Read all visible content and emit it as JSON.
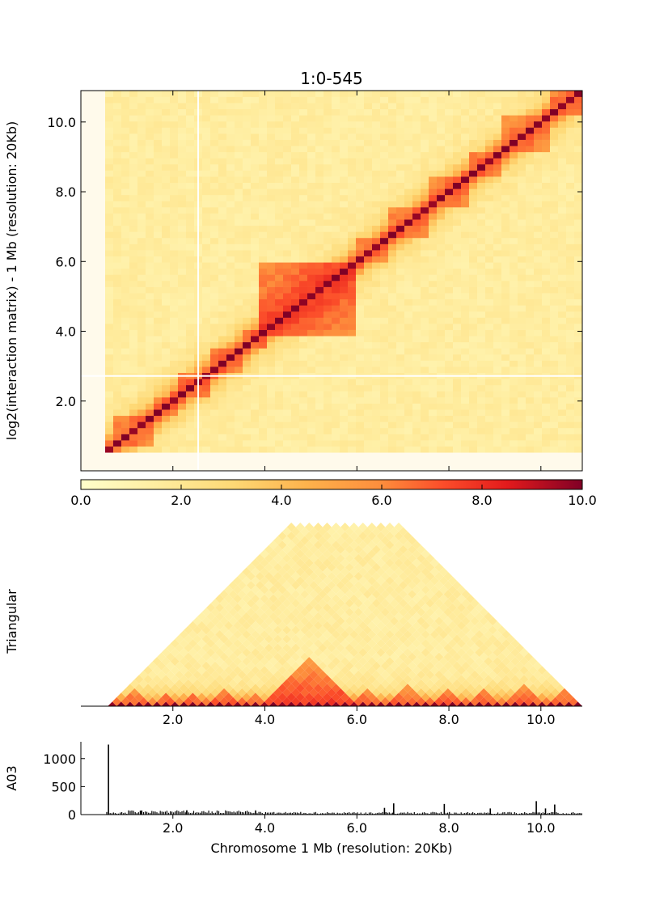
{
  "chart_data": [
    {
      "type": "heatmap",
      "title": "1:0-545",
      "ylabel": "log2(interaction matrix) - 1 Mb (resolution: 20Kb)",
      "xlim": [
        0,
        10.9
      ],
      "ylim": [
        0,
        10.9
      ],
      "y_ticks": [
        "2.0",
        "4.0",
        "6.0",
        "8.0",
        "10.0"
      ],
      "y_tick_values": [
        2,
        4,
        6,
        8,
        10
      ],
      "colormap": "YlOrRd",
      "domains_mb": [
        [
          0.7,
          1.5
        ],
        [
          1.5,
          2.1
        ],
        [
          2.1,
          2.8
        ],
        [
          2.8,
          3.6
        ],
        [
          3.6,
          4.0
        ],
        [
          4.0,
          5.9
        ],
        [
          5.9,
          6.6
        ],
        [
          6.6,
          7.6
        ],
        [
          7.6,
          8.4
        ],
        [
          8.4,
          9.2
        ],
        [
          9.2,
          10.2
        ],
        [
          10.2,
          10.9
        ]
      ],
      "colorbar": {
        "min": 0,
        "max": 10,
        "ticks": [
          "0.0",
          "2.0",
          "4.0",
          "6.0",
          "8.0",
          "10.0"
        ],
        "tick_values": [
          0,
          2,
          4,
          6,
          8,
          10
        ]
      }
    },
    {
      "type": "heatmap",
      "ylabel": "Triangular",
      "xlim": [
        0,
        10.9
      ],
      "x_ticks": [
        "2.0",
        "4.0",
        "6.0",
        "8.0",
        "10.0"
      ],
      "x_tick_values": [
        2,
        4,
        6,
        8,
        10
      ]
    },
    {
      "type": "bar",
      "ylabel": "A03",
      "xlabel": "Chromosome 1 Mb (resolution: 20Kb)",
      "xlim": [
        0,
        10.9
      ],
      "ylim": [
        0,
        1300
      ],
      "y_ticks": [
        "0",
        "500",
        "1000"
      ],
      "y_tick_values": [
        0,
        500,
        1000
      ],
      "x_ticks": [
        "2.0",
        "4.0",
        "6.0",
        "8.0",
        "10.0"
      ],
      "x_tick_values": [
        2,
        4,
        6,
        8,
        10
      ],
      "peaks": [
        {
          "x": 0.6,
          "y": 1250
        },
        {
          "x": 1.3,
          "y": 70
        },
        {
          "x": 2.3,
          "y": 75
        },
        {
          "x": 3.8,
          "y": 65
        },
        {
          "x": 6.6,
          "y": 120
        },
        {
          "x": 6.8,
          "y": 200
        },
        {
          "x": 7.9,
          "y": 190
        },
        {
          "x": 8.9,
          "y": 110
        },
        {
          "x": 9.9,
          "y": 240
        },
        {
          "x": 10.3,
          "y": 180
        },
        {
          "x": 10.1,
          "y": 110
        }
      ],
      "baseline": 30
    }
  ]
}
